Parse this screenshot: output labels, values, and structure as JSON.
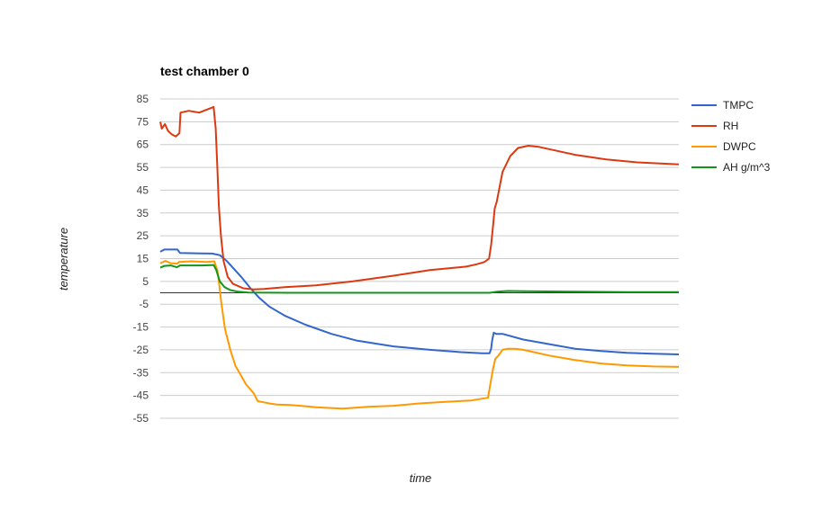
{
  "chart_data": {
    "type": "line",
    "title": "test chamber 0",
    "xlabel": "time",
    "ylabel": "temperature",
    "ylim": [
      -55,
      85
    ],
    "yticks": [
      "85",
      "75",
      "65",
      "55",
      "45",
      "35",
      "25",
      "15",
      "5",
      "-5",
      "-15",
      "-25",
      "-35",
      "-45",
      "-55"
    ],
    "xlim": [
      0,
      100
    ],
    "grid": true,
    "legend": "right",
    "series": [
      {
        "name": "TMPC",
        "color": "#3366cc",
        "points": [
          [
            0,
            18
          ],
          [
            0.8,
            19
          ],
          [
            3.3,
            19
          ],
          [
            3.8,
            17.5
          ],
          [
            8,
            17.3
          ],
          [
            10,
            17.2
          ],
          [
            11.5,
            16.5
          ],
          [
            12.8,
            14
          ],
          [
            14,
            11
          ],
          [
            15.6,
            7
          ],
          [
            17.4,
            2
          ],
          [
            19,
            -2
          ],
          [
            21,
            -6
          ],
          [
            24,
            -10
          ],
          [
            28,
            -14
          ],
          [
            33,
            -18
          ],
          [
            38,
            -21
          ],
          [
            45,
            -23.5
          ],
          [
            52,
            -25
          ],
          [
            58,
            -26
          ],
          [
            62,
            -26.5
          ],
          [
            63.5,
            -26.5
          ],
          [
            63.8,
            -24.5
          ],
          [
            64,
            -21
          ],
          [
            64.3,
            -17.5
          ],
          [
            64.8,
            -18
          ],
          [
            66,
            -18
          ],
          [
            70,
            -20.5
          ],
          [
            75,
            -22.5
          ],
          [
            80,
            -24.5
          ],
          [
            85,
            -25.5
          ],
          [
            90,
            -26.3
          ],
          [
            95,
            -26.7
          ],
          [
            100,
            -27
          ]
        ]
      },
      {
        "name": "RH",
        "color": "#dc3912",
        "points": [
          [
            0,
            75
          ],
          [
            0.3,
            72
          ],
          [
            0.9,
            74
          ],
          [
            1.5,
            71
          ],
          [
            2.2,
            69.5
          ],
          [
            3,
            68.5
          ],
          [
            3.7,
            70
          ],
          [
            3.9,
            79
          ],
          [
            5.5,
            79.8
          ],
          [
            7.5,
            79
          ],
          [
            10.3,
            81.5
          ],
          [
            10.7,
            72
          ],
          [
            11,
            55
          ],
          [
            11.3,
            38
          ],
          [
            11.7,
            25
          ],
          [
            12.2,
            14
          ],
          [
            13,
            7
          ],
          [
            14,
            4
          ],
          [
            16,
            2
          ],
          [
            18,
            1.5
          ],
          [
            20,
            1.7
          ],
          [
            24,
            2.5
          ],
          [
            30,
            3.3
          ],
          [
            37,
            5
          ],
          [
            45,
            7.5
          ],
          [
            52,
            10
          ],
          [
            59,
            11.5
          ],
          [
            61,
            12.5
          ],
          [
            62.5,
            13.5
          ],
          [
            63.4,
            15
          ],
          [
            63.8,
            21
          ],
          [
            64.2,
            30
          ],
          [
            64.5,
            37
          ],
          [
            64.9,
            40
          ],
          [
            65.4,
            46
          ],
          [
            66,
            53
          ],
          [
            67.5,
            60
          ],
          [
            69,
            63.5
          ],
          [
            71,
            64.5
          ],
          [
            73,
            64
          ],
          [
            75,
            63
          ],
          [
            80,
            60.5
          ],
          [
            86,
            58.5
          ],
          [
            92,
            57.2
          ],
          [
            100,
            56.3
          ]
        ]
      },
      {
        "name": "DWPC",
        "color": "#ff9900",
        "points": [
          [
            0,
            13
          ],
          [
            1,
            14
          ],
          [
            2,
            13
          ],
          [
            3.3,
            12.8
          ],
          [
            3.6,
            13.5
          ],
          [
            6,
            13.8
          ],
          [
            9,
            13.5
          ],
          [
            10.4,
            13.8
          ],
          [
            11,
            10
          ],
          [
            11.3,
            5
          ],
          [
            11.8,
            -5
          ],
          [
            12.5,
            -16
          ],
          [
            13.5,
            -25
          ],
          [
            14.5,
            -32
          ],
          [
            15.5,
            -36
          ],
          [
            16.5,
            -40
          ],
          [
            18,
            -44
          ],
          [
            18.8,
            -47.5
          ],
          [
            20,
            -48
          ],
          [
            21,
            -48.5
          ],
          [
            22.5,
            -49
          ],
          [
            25,
            -49.2
          ],
          [
            27,
            -49.5
          ],
          [
            30,
            -50.2
          ],
          [
            35,
            -50.8
          ],
          [
            40,
            -50
          ],
          [
            45,
            -49.5
          ],
          [
            50,
            -48.5
          ],
          [
            55,
            -47.8
          ],
          [
            60,
            -47.2
          ],
          [
            63.2,
            -46
          ],
          [
            63.8,
            -38
          ],
          [
            64.2,
            -33
          ],
          [
            64.6,
            -29
          ],
          [
            65.2,
            -27.5
          ],
          [
            66,
            -25
          ],
          [
            67,
            -24.5
          ],
          [
            68.5,
            -24.5
          ],
          [
            70,
            -25
          ],
          [
            75,
            -27.5
          ],
          [
            80,
            -29.5
          ],
          [
            85,
            -31
          ],
          [
            90,
            -31.8
          ],
          [
            95,
            -32.3
          ],
          [
            100,
            -32.5
          ]
        ]
      },
      {
        "name": "AH g/m^3",
        "color": "#109618",
        "points": [
          [
            0,
            11
          ],
          [
            0.8,
            11.8
          ],
          [
            2,
            12
          ],
          [
            3.2,
            11.2
          ],
          [
            3.8,
            12
          ],
          [
            8,
            12
          ],
          [
            10.3,
            12.2
          ],
          [
            10.8,
            10
          ],
          [
            11.5,
            5
          ],
          [
            12.4,
            2.5
          ],
          [
            13.5,
            1.2
          ],
          [
            15,
            0.5
          ],
          [
            17,
            0.1
          ],
          [
            25,
            0
          ],
          [
            40,
            0
          ],
          [
            55,
            0
          ],
          [
            63.5,
            0
          ],
          [
            65,
            0.5
          ],
          [
            67,
            0.8
          ],
          [
            70,
            0.7
          ],
          [
            80,
            0.5
          ],
          [
            90,
            0.3
          ],
          [
            100,
            0.3
          ]
        ]
      }
    ]
  }
}
